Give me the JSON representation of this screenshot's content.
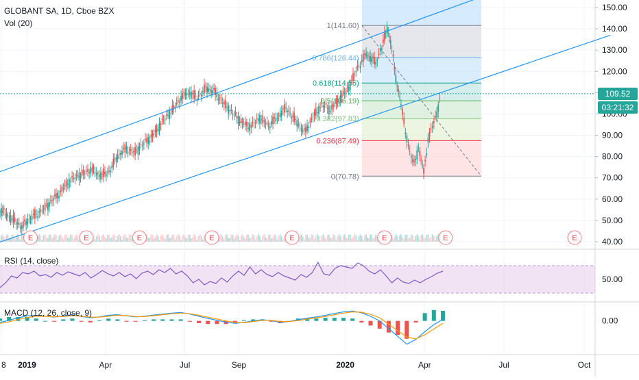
{
  "header": {
    "symbol_line": "GLOBANT SA, 1D, Cboe BZX",
    "volume_label": "Vol (20)"
  },
  "price_tag": {
    "value": "109.52",
    "countdown": "03:21:32",
    "color": "#26a69a"
  },
  "indicators": {
    "rsi_label": "RSI (14, close)",
    "macd_label": "MACD (12, 26, close, 9)"
  },
  "chart_data": [
    {
      "type": "line",
      "title": "GLOBANT SA, 1D, Cboe BZX",
      "x_axis": {
        "ticks": [
          "8",
          "2019",
          "Apr",
          "Jul",
          "Sep",
          "2020",
          "Apr",
          "Jul",
          "Oct"
        ]
      },
      "y_axis": {
        "ticks": [
          "150.00",
          "140.00",
          "130.00",
          "120.00",
          "110.00",
          "100.00",
          "90.00",
          "80.00",
          "70.00",
          "60.00",
          "50.00",
          "40.00"
        ],
        "range": [
          40,
          150
        ]
      },
      "last_price": 109.52,
      "price_series": [
        [
          "2018-12-01",
          55
        ],
        [
          "2018-12-10",
          52
        ],
        [
          "2018-12-18",
          50
        ],
        [
          "2018-12-26",
          47
        ],
        [
          "2019-01-05",
          51
        ],
        [
          "2019-01-15",
          54
        ],
        [
          "2019-01-25",
          57
        ],
        [
          "2019-02-05",
          62
        ],
        [
          "2019-02-15",
          67
        ],
        [
          "2019-02-25",
          70
        ],
        [
          "2019-03-05",
          72
        ],
        [
          "2019-03-15",
          74
        ],
        [
          "2019-03-25",
          71
        ],
        [
          "2019-04-05",
          73
        ],
        [
          "2019-04-15",
          80
        ],
        [
          "2019-04-25",
          84
        ],
        [
          "2019-05-05",
          82
        ],
        [
          "2019-05-15",
          86
        ],
        [
          "2019-05-25",
          90
        ],
        [
          "2019-06-05",
          96
        ],
        [
          "2019-06-15",
          101
        ],
        [
          "2019-06-25",
          107
        ],
        [
          "2019-07-05",
          110
        ],
        [
          "2019-07-15",
          108
        ],
        [
          "2019-07-25",
          112
        ],
        [
          "2019-08-05",
          110
        ],
        [
          "2019-08-15",
          105
        ],
        [
          "2019-08-25",
          100
        ],
        [
          "2019-09-05",
          96
        ],
        [
          "2019-09-15",
          94
        ],
        [
          "2019-09-25",
          98
        ],
        [
          "2019-10-05",
          95
        ],
        [
          "2019-10-15",
          98
        ],
        [
          "2019-10-25",
          103
        ],
        [
          "2019-11-05",
          97
        ],
        [
          "2019-11-15",
          91
        ],
        [
          "2019-11-25",
          99
        ],
        [
          "2019-12-05",
          104
        ],
        [
          "2019-12-15",
          102
        ],
        [
          "2019-12-25",
          107
        ],
        [
          "2020-01-05",
          112
        ],
        [
          "2020-01-15",
          122
        ],
        [
          "2020-01-25",
          128
        ],
        [
          "2020-02-05",
          124
        ],
        [
          "2020-02-12",
          132
        ],
        [
          "2020-02-18",
          140
        ],
        [
          "2020-02-22",
          134
        ],
        [
          "2020-02-28",
          117
        ],
        [
          "2020-03-05",
          105
        ],
        [
          "2020-03-10",
          92
        ],
        [
          "2020-03-15",
          82
        ],
        [
          "2020-03-20",
          76
        ],
        [
          "2020-03-25",
          84
        ],
        [
          "2020-03-31",
          73
        ],
        [
          "2020-04-05",
          88
        ],
        [
          "2020-04-10",
          94
        ],
        [
          "2020-04-15",
          100
        ],
        [
          "2020-04-20",
          109.52
        ]
      ],
      "fibonacci": {
        "levels": [
          {
            "ratio": "1",
            "price": 141.6,
            "label": "1(141.60)",
            "color": "#787b86"
          },
          {
            "ratio": "0.786",
            "price": 126.44,
            "label": "0.786(126.44)",
            "color": "#64b5f6"
          },
          {
            "ratio": "0.618",
            "price": 114.55,
            "label": "0.618(114.55)",
            "color": "#089981"
          },
          {
            "ratio": "0.5",
            "price": 106.19,
            "label": "0.5(106.19)",
            "color": "#4caf50"
          },
          {
            "ratio": "0.382",
            "price": 97.83,
            "label": "0.382(97.83)",
            "color": "#81c784"
          },
          {
            "ratio": "0.236",
            "price": 87.49,
            "label": "0.236(87.49)",
            "color": "#f23645"
          },
          {
            "ratio": "0",
            "price": 70.78,
            "label": "0(70.78)",
            "color": "#787b86"
          }
        ]
      },
      "channel_lines": [
        {
          "from": [
            "2018-11-25",
            72
          ],
          "to": [
            "2020-06-05",
            155
          ]
        },
        {
          "from": [
            "2018-11-25",
            39
          ],
          "to": [
            "2020-10-31",
            137
          ]
        }
      ],
      "earnings_markers": {
        "label": "E",
        "dates": [
          "2019-01-05",
          "2019-03-10",
          "2019-05-10",
          "2019-08-01",
          "2019-11-01",
          "2020-02-15",
          "2020-04-25",
          "2020-09-20"
        ]
      }
    },
    {
      "type": "line",
      "title": "RSI (14, close)",
      "y_axis": {
        "ticks": [
          "50.00"
        ],
        "range": [
          20,
          90
        ],
        "band": [
          30,
          70
        ]
      },
      "series": [
        {
          "values": [
            38,
            45,
            55,
            52,
            60,
            58,
            62,
            55,
            57,
            53,
            60,
            56,
            61,
            58,
            55,
            60,
            52,
            57,
            63,
            58,
            55,
            60,
            54,
            58,
            51,
            59,
            62,
            57,
            64,
            60,
            66,
            58,
            62,
            55,
            45,
            50,
            42,
            47,
            44,
            52,
            46,
            55,
            62,
            56,
            68,
            58,
            64,
            57,
            54,
            60,
            55,
            52,
            49,
            57,
            53,
            60,
            75,
            58,
            56,
            66,
            70,
            68,
            66,
            74,
            70,
            62,
            58,
            64,
            55,
            45,
            52,
            46,
            44,
            49,
            45,
            50,
            54,
            59,
            62
          ]
        }
      ]
    },
    {
      "type": "line",
      "title": "MACD (12, 26, close, 9)",
      "y_axis": {
        "ticks": [
          "0.00"
        ],
        "range": [
          -10,
          5
        ]
      },
      "series": [
        {
          "name": "",
          "values": [
            -0.5,
            0.2,
            1.0,
            1.6,
            1.8,
            1.5,
            1.2,
            1.6,
            2.0,
            1.4,
            1.0,
            1.3,
            1.8,
            2.0,
            1.6,
            1.3,
            1.5,
            1.9,
            2.2,
            2.5,
            2.7,
            2.2,
            1.5,
            0.8,
            0.2,
            -0.4,
            -0.8,
            -0.5,
            0.0,
            0.4,
            0.1,
            -0.5,
            -0.2,
            0.4,
            0.9,
            1.3,
            1.8,
            2.4,
            2.9,
            3.2,
            2.6,
            1.5,
            0.0,
            -2.5,
            -5.0,
            -7.5,
            -6.0,
            -3.5,
            -1.2,
            0.5
          ]
        },
        {
          "name": "",
          "values": [
            -0.8,
            -0.3,
            0.5,
            1.1,
            1.5,
            1.5,
            1.3,
            1.4,
            1.7,
            1.5,
            1.2,
            1.2,
            1.5,
            1.8,
            1.7,
            1.4,
            1.4,
            1.7,
            2.0,
            2.3,
            2.5,
            2.3,
            1.8,
            1.2,
            0.6,
            0.0,
            -0.5,
            -0.6,
            -0.2,
            0.2,
            0.2,
            -0.2,
            -0.2,
            0.1,
            0.6,
            1.0,
            1.4,
            2.0,
            2.5,
            2.9,
            2.8,
            2.1,
            1.0,
            -1.0,
            -3.2,
            -5.2,
            -5.8,
            -4.5,
            -2.6,
            -0.8
          ]
        }
      ]
    }
  ]
}
